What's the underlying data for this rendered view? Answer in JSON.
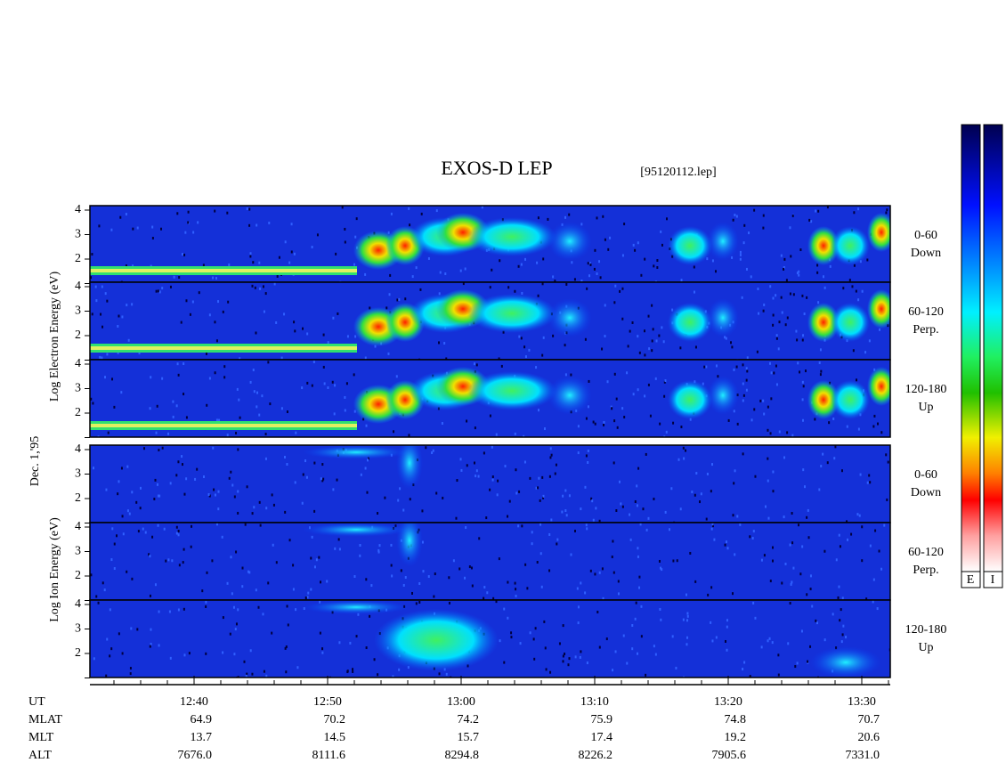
{
  "title": "EXOS-D LEP",
  "file": "[95120112.lep]",
  "date": "Dec. 1,'95",
  "electron_axis_label": "Log Electron Energy (eV)",
  "ion_axis_label": "Log Ion Energy (eV)",
  "energy_ticks": [
    "2",
    "3",
    "4"
  ],
  "panels": [
    {
      "species": "electron",
      "angle": "0-60",
      "direction": "Down"
    },
    {
      "species": "electron",
      "angle": "60-120",
      "direction": "Perp."
    },
    {
      "species": "electron",
      "angle": "120-180",
      "direction": "Up"
    },
    {
      "species": "ion",
      "angle": "0-60",
      "direction": "Down"
    },
    {
      "species": "ion",
      "angle": "60-120",
      "direction": "Perp."
    },
    {
      "species": "ion",
      "angle": "120-180",
      "direction": "Up"
    }
  ],
  "colorbar_labels": [
    "E",
    "I"
  ],
  "orbit_table": {
    "row_labels": [
      "UT",
      "MLAT",
      "MLT",
      "ALT"
    ],
    "columns": [
      [
        "12:40",
        "64.9",
        "13.7",
        "7676.0"
      ],
      [
        "12:50",
        "70.2",
        "14.5",
        "8111.6"
      ],
      [
        "13:00",
        "74.2",
        "15.7",
        "8294.8"
      ],
      [
        "13:10",
        "75.9",
        "17.4",
        "8226.2"
      ],
      [
        "13:20",
        "74.8",
        "19.2",
        "7905.6"
      ],
      [
        "13:30",
        "70.7",
        "20.6",
        "7331.0"
      ]
    ]
  }
}
